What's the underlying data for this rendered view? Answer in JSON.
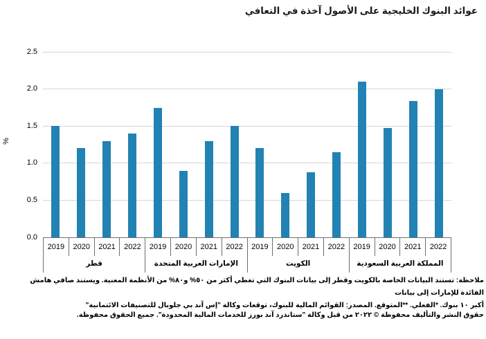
{
  "title": "عوائد البنوك الخليجية على الأصول آخذة في التعافي",
  "chart_data": {
    "type": "bar",
    "title": "عوائد البنوك الخليجية على الأصول آخذة في التعافي",
    "xlabel": "",
    "ylabel": "%",
    "ylim": [
      0,
      2.5
    ],
    "yticks": [
      "0.0",
      "0.5",
      "1.0",
      "1.5",
      "2.0",
      "2.5"
    ],
    "grid": true,
    "legend": "none",
    "bar_color": "#2182b4",
    "categories": [
      "2019",
      "2020",
      "2021",
      "2022"
    ],
    "groups": [
      {
        "key": "qatar",
        "label": "قطر",
        "years": [
          "2019",
          "2020",
          "2021",
          "2022"
        ],
        "values": [
          1.5,
          1.2,
          1.3,
          1.4
        ]
      },
      {
        "key": "uae",
        "label": "الإمارات العربية المتحدة",
        "years": [
          "2019",
          "2020",
          "2021",
          "2022"
        ],
        "values": [
          1.74,
          0.9,
          1.3,
          1.5
        ]
      },
      {
        "key": "kuwait",
        "label": "الكويت",
        "years": [
          "2019",
          "2020",
          "2021",
          "2022"
        ],
        "values": [
          1.2,
          0.6,
          0.88,
          1.15
        ]
      },
      {
        "key": "saudi-arabia",
        "label": "المملكة العربية السعودية",
        "years": [
          "2019",
          "2020",
          "2021",
          "2022"
        ],
        "values": [
          2.1,
          1.47,
          1.84,
          2.0
        ]
      }
    ]
  },
  "footnote": {
    "line1": "ملاحظة: تستند البيانات الخاصة بالكويت وقطر إلى بيانات البنوك التي تغطي أكثر من ٥٠% و٨٠% من الأنظمة المعنية. ويستند صافي هامش الفائدة للإمارات إلى بيانات",
    "line2": "أكبر ١٠ بنوك. *الفعلي. **المتوقع. المصدر: القوائم المالية للبنوك، توقعات وكالة \"إس آند بي جلوبال للتصنيفات الائتمانية\""
  },
  "copyright": "حقوق النشر والتأليف محفوظة © ٢٠٢٢ من قبل وكالة \"ستاندرد آند بورز للخدمات المالية المحدودة\". جميع الحقوق محفوظة."
}
